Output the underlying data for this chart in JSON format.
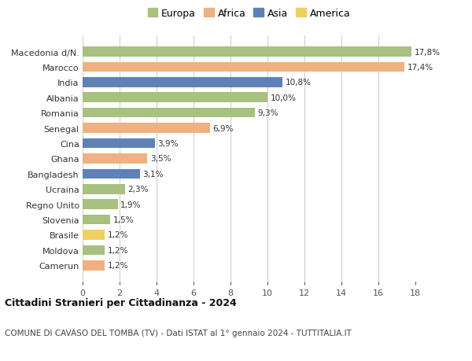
{
  "categories": [
    "Camerun",
    "Moldova",
    "Brasile",
    "Slovenia",
    "Regno Unito",
    "Ucraina",
    "Bangladesh",
    "Ghana",
    "Cina",
    "Senegal",
    "Romania",
    "Albania",
    "India",
    "Marocco",
    "Macedonia d/N."
  ],
  "values": [
    1.2,
    1.2,
    1.2,
    1.5,
    1.9,
    2.3,
    3.1,
    3.5,
    3.9,
    6.9,
    9.3,
    10.0,
    10.8,
    17.4,
    17.8
  ],
  "labels": [
    "1,2%",
    "1,2%",
    "1,2%",
    "1,5%",
    "1,9%",
    "2,3%",
    "3,1%",
    "3,5%",
    "3,9%",
    "6,9%",
    "9,3%",
    "10,0%",
    "10,8%",
    "17,4%",
    "17,8%"
  ],
  "continents": [
    "Africa",
    "Europa",
    "America",
    "Europa",
    "Europa",
    "Europa",
    "Asia",
    "Africa",
    "Asia",
    "Africa",
    "Europa",
    "Europa",
    "Asia",
    "Africa",
    "Europa"
  ],
  "colors": {
    "Europa": "#a8c080",
    "Africa": "#f0b080",
    "Asia": "#6080b8",
    "America": "#f0d060"
  },
  "legend_order": [
    "Europa",
    "Africa",
    "Asia",
    "America"
  ],
  "title": "Cittadini Stranieri per Cittadinanza - 2024",
  "subtitle": "COMUNE DI CAVASO DEL TOMBA (TV) - Dati ISTAT al 1° gennaio 2024 - TUTTITALIA.IT",
  "xlim": [
    0,
    18
  ],
  "xticks": [
    0,
    2,
    4,
    6,
    8,
    10,
    12,
    14,
    16,
    18
  ],
  "bg_color": "#ffffff",
  "grid_color": "#d0d0d0",
  "bar_height": 0.65
}
